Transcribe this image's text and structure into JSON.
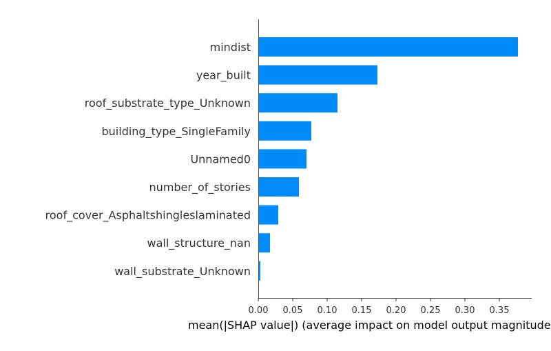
{
  "chart_data": {
    "type": "bar",
    "orientation": "horizontal",
    "categories": [
      "mindist",
      "year_built",
      "roof_substrate_type_Unknown",
      "building_type_SingleFamily",
      "Unnamed0",
      "number_of_stories",
      "roof_cover_Asphaltshingleslaminated",
      "wall_structure_nan",
      "wall_substrate_Unknown"
    ],
    "values": [
      0.377,
      0.173,
      0.115,
      0.077,
      0.07,
      0.059,
      0.029,
      0.017,
      0.003
    ],
    "xlabel": "mean(|SHAP value|) (average impact on model output magnitude)",
    "ylabel": "",
    "title": "",
    "xlim": [
      0,
      0.397
    ],
    "xticks": [
      0.0,
      0.05,
      0.1,
      0.15,
      0.2,
      0.25,
      0.3,
      0.35
    ],
    "xtick_labels": [
      "0.00",
      "0.05",
      "0.10",
      "0.15",
      "0.20",
      "0.25",
      "0.30",
      "0.35"
    ],
    "bar_color": "#008bfb",
    "grid": false,
    "legend": "none"
  }
}
